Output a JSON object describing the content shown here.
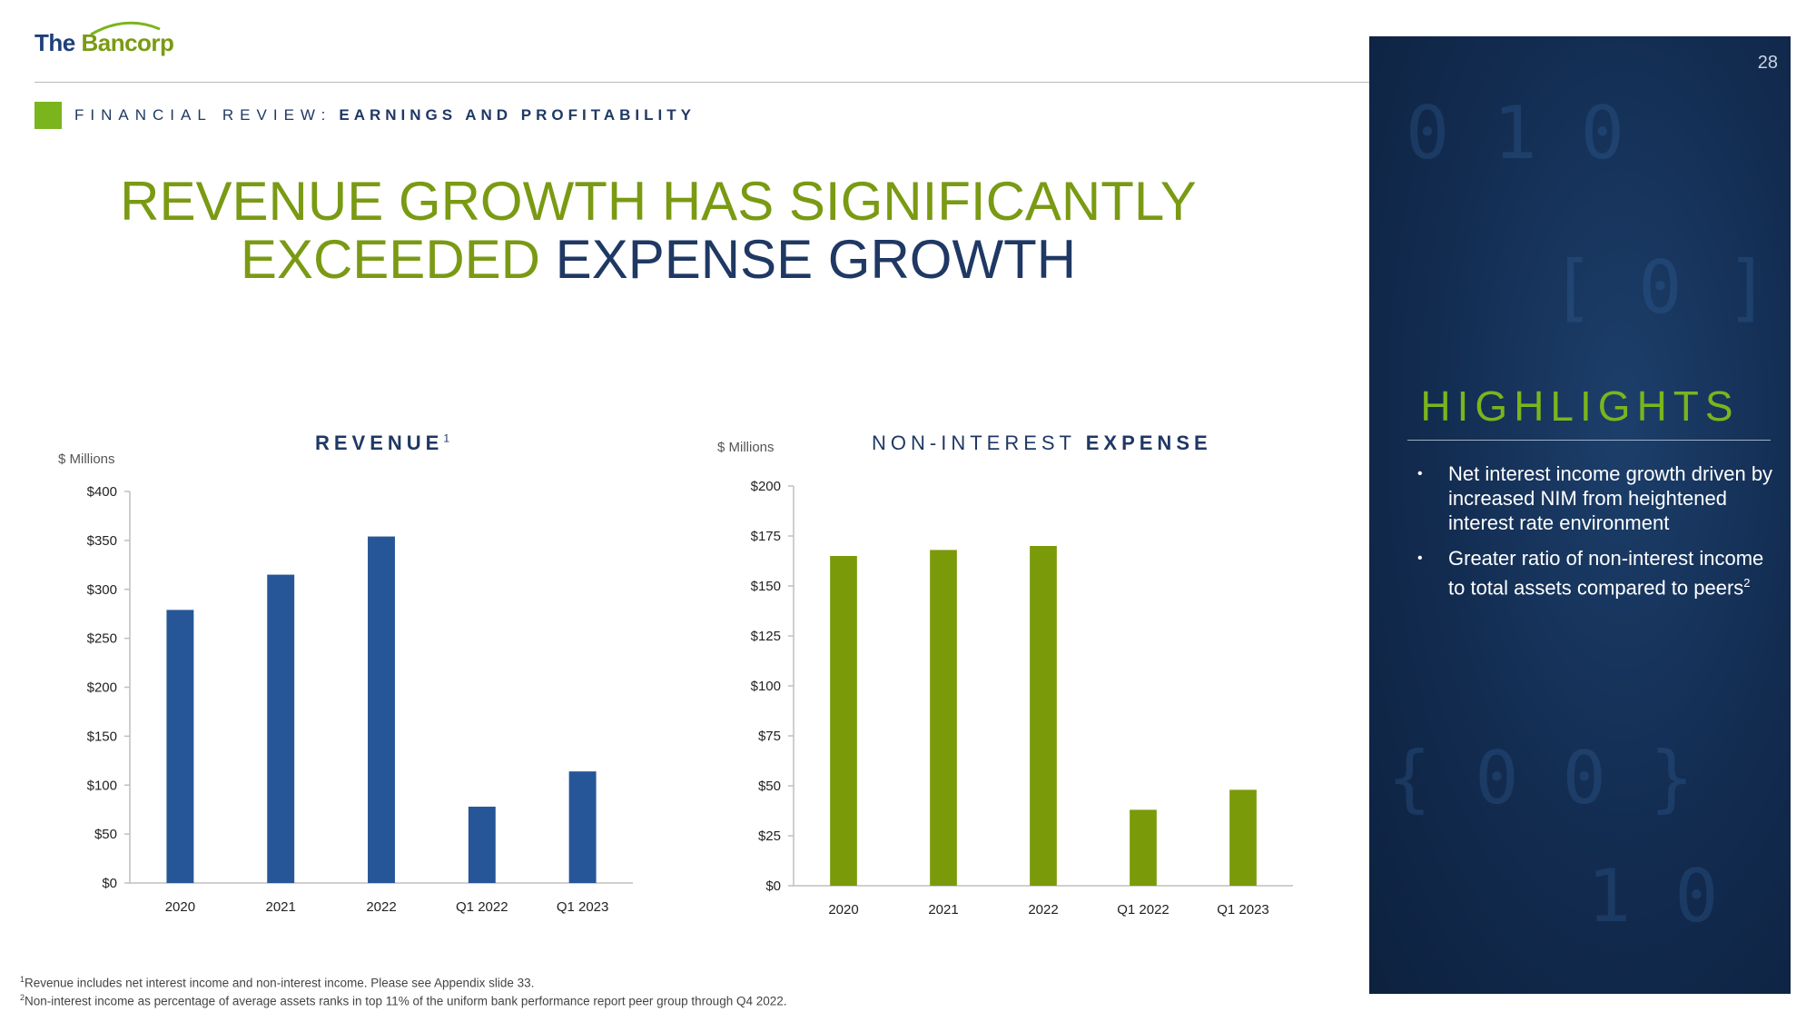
{
  "logo": {
    "part1": "The",
    "part2": "Bancorp"
  },
  "section": {
    "label": "FINANCIAL REVIEW:",
    "topic": "EARNINGS AND PROFITABILITY"
  },
  "title": {
    "line1": "REVENUE GROWTH HAS SIGNIFICANTLY",
    "line2_green": "EXCEEDED",
    "line2_dark": "EXPENSE GROWTH"
  },
  "page_number": "28",
  "highlights": {
    "title": "HIGHLIGHTS",
    "items": [
      "Net interest income growth driven by increased NIM from heightened interest rate environment",
      "Greater ratio of non-interest income to total assets compared to peers"
    ],
    "item2_sup": "2"
  },
  "chart_data": [
    {
      "type": "bar",
      "title": "REVENUE",
      "title_sup": "1",
      "ylabel": "$ Millions",
      "categories": [
        "2020",
        "2021",
        "2022",
        "Q1 2022",
        "Q1 2023"
      ],
      "values": [
        279,
        315,
        354,
        78,
        114
      ],
      "ylim": [
        0,
        400
      ],
      "yticks": [
        "$0",
        "$50",
        "$100",
        "$150",
        "$200",
        "$250",
        "$300",
        "$350",
        "$400"
      ],
      "color": "#265697"
    },
    {
      "type": "bar",
      "title_part1": "NON-INTEREST",
      "title_part2": "EXPENSE",
      "ylabel": "$ Millions",
      "categories": [
        "2020",
        "2021",
        "2022",
        "Q1 2022",
        "Q1 2023"
      ],
      "values": [
        165,
        168,
        170,
        38,
        48
      ],
      "ylim": [
        0,
        200
      ],
      "yticks": [
        "$0",
        "$25",
        "$50",
        "$75",
        "$100",
        "$125",
        "$150",
        "$175",
        "$200"
      ],
      "color": "#7a9a0a"
    }
  ],
  "footnotes": {
    "n1_sup": "1",
    "n1": "Revenue includes net interest income and non-interest income.  Please see Appendix slide 33.",
    "n2_sup": "2",
    "n2": "Non-interest income as percentage of average assets ranks in top 11% of the uniform bank performance report peer group through Q4 2022."
  },
  "colors": {
    "green": "#7a9a13",
    "navy": "#1f3864",
    "panel": "#122b4f"
  }
}
